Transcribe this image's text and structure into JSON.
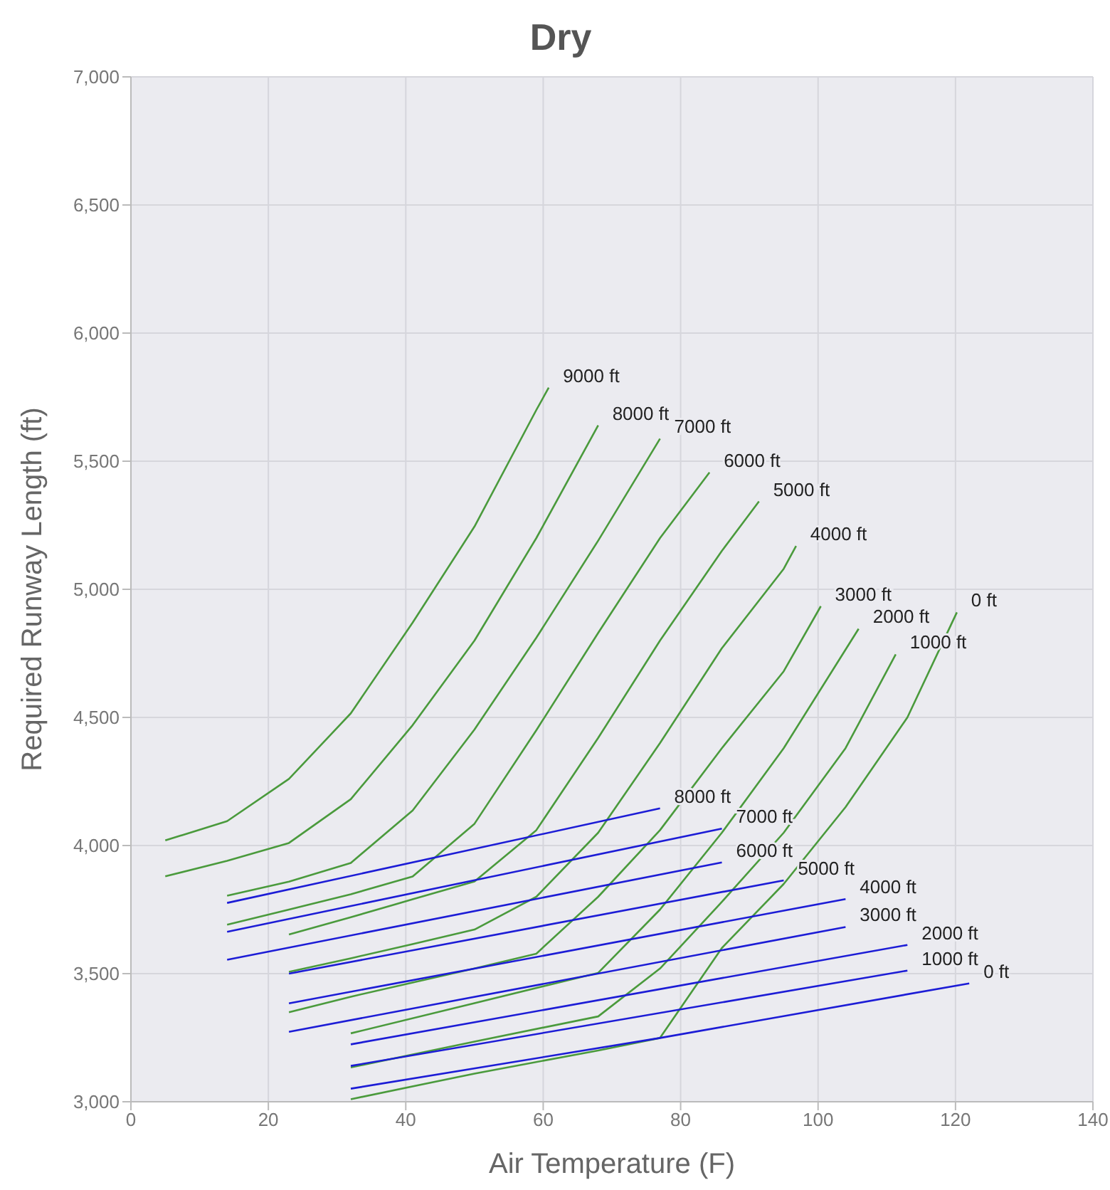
{
  "chart_data": {
    "type": "line",
    "title": "Dry",
    "xlabel": "Air Temperature (F)",
    "ylabel": "Required Runway Length (ft)",
    "xlim": [
      0,
      140
    ],
    "xticks": [
      0,
      20,
      40,
      60,
      80,
      100,
      120,
      140
    ],
    "ylim": [
      3000,
      7000
    ],
    "yticks": [
      {
        "value": 3000,
        "label": "3,000"
      },
      {
        "value": 3500,
        "label": "3,500"
      },
      {
        "value": 4000,
        "label": "4,000"
      },
      {
        "value": 4500,
        "label": "4,500"
      },
      {
        "value": 5000,
        "label": "5,000"
      },
      {
        "value": 5500,
        "label": "5,500"
      },
      {
        "value": 6000,
        "label": "6,000"
      },
      {
        "value": 6500,
        "label": "6,500"
      },
      {
        "value": 7000,
        "label": "7,000"
      }
    ],
    "grid": true,
    "legend": false,
    "marker": "none",
    "line_style": "solid",
    "series": [
      {
        "name": "9000 ft",
        "color": "#4a9a3c",
        "x": [
          5,
          14,
          23,
          32,
          41,
          50,
          59,
          60.8
        ],
        "values": [
          4020,
          4095,
          4260,
          4516,
          4870,
          5245,
          5700,
          5787
        ]
      },
      {
        "name": "8000 ft",
        "color": "#4a9a3c",
        "x": [
          5,
          14,
          23,
          32,
          41,
          50,
          59,
          68
        ],
        "values": [
          3880,
          3940,
          4010,
          4181,
          4470,
          4800,
          5200,
          5640
        ]
      },
      {
        "name": "7000 ft",
        "color": "#4a9a3c",
        "x": [
          14,
          23,
          32,
          41,
          50,
          59,
          68,
          77
        ],
        "values": [
          3804,
          3859,
          3932,
          4137,
          4453,
          4811,
          5190,
          5588
        ]
      },
      {
        "name": "6000 ft",
        "color": "#4a9a3c",
        "x": [
          14,
          23,
          32,
          41,
          50,
          59,
          68,
          77,
          84.2
        ],
        "values": [
          3691,
          3750,
          3810,
          3879,
          4085,
          4450,
          4830,
          5200,
          5456
        ]
      },
      {
        "name": "5000 ft",
        "color": "#4a9a3c",
        "x": [
          23,
          32,
          41,
          50,
          59,
          68,
          77,
          86,
          91.4
        ],
        "values": [
          3653,
          3720,
          3790,
          3860,
          4060,
          4420,
          4800,
          5150,
          5343
        ]
      },
      {
        "name": "4000 ft",
        "color": "#4a9a3c",
        "x": [
          23,
          32,
          41,
          50,
          59,
          68,
          77,
          86,
          95,
          96.8
        ],
        "values": [
          3507,
          3560,
          3615,
          3672,
          3800,
          4050,
          4400,
          4770,
          5080,
          5169
        ]
      },
      {
        "name": "3000 ft",
        "color": "#4a9a3c",
        "x": [
          23,
          32,
          41,
          50,
          59,
          68,
          77,
          86,
          95,
          100.4
        ],
        "values": [
          3349,
          3410,
          3465,
          3520,
          3578,
          3800,
          4060,
          4380,
          4680,
          4934
        ]
      },
      {
        "name": "2000 ft",
        "color": "#4a9a3c",
        "x": [
          32,
          50,
          68,
          77,
          86,
          95,
          105.9
        ],
        "values": [
          3267,
          3385,
          3503,
          3750,
          4050,
          4380,
          4846
        ]
      },
      {
        "name": "1000 ft",
        "color": "#4a9a3c",
        "x": [
          32,
          50,
          68,
          77,
          86,
          95,
          104,
          111.3
        ],
        "values": [
          3134,
          3235,
          3333,
          3520,
          3780,
          4050,
          4380,
          4746
        ]
      },
      {
        "name": "0 ft",
        "color": "#4a9a3c",
        "x": [
          32,
          50,
          68,
          77,
          86,
          95,
          104,
          113,
          120.2
        ],
        "values": [
          3010,
          3110,
          3200,
          3249,
          3600,
          3850,
          4150,
          4500,
          4910
        ]
      },
      {
        "name": "8000 ft",
        "color": "#1c1cd6",
        "x": [
          14,
          77
        ],
        "values": [
          3776,
          4145
        ]
      },
      {
        "name": "7000 ft",
        "color": "#1c1cd6",
        "x": [
          14,
          86
        ],
        "values": [
          3663,
          4066
        ]
      },
      {
        "name": "6000 ft",
        "color": "#1c1cd6",
        "x": [
          14,
          86
        ],
        "values": [
          3554,
          3934
        ]
      },
      {
        "name": "5000 ft",
        "color": "#1c1cd6",
        "x": [
          23,
          95
        ],
        "values": [
          3500,
          3864
        ]
      },
      {
        "name": "4000 ft",
        "color": "#1c1cd6",
        "x": [
          23,
          104
        ],
        "values": [
          3384,
          3791
        ]
      },
      {
        "name": "3000 ft",
        "color": "#1c1cd6",
        "x": [
          23,
          104
        ],
        "values": [
          3273,
          3682
        ]
      },
      {
        "name": "2000 ft",
        "color": "#1c1cd6",
        "x": [
          32,
          113
        ],
        "values": [
          3224,
          3612
        ]
      },
      {
        "name": "1000 ft",
        "color": "#1c1cd6",
        "x": [
          32,
          113
        ],
        "values": [
          3140,
          3512
        ]
      },
      {
        "name": "0 ft",
        "color": "#1c1cd6",
        "x": [
          32,
          77,
          122
        ],
        "values": [
          3051,
          3249,
          3462
        ]
      }
    ]
  }
}
